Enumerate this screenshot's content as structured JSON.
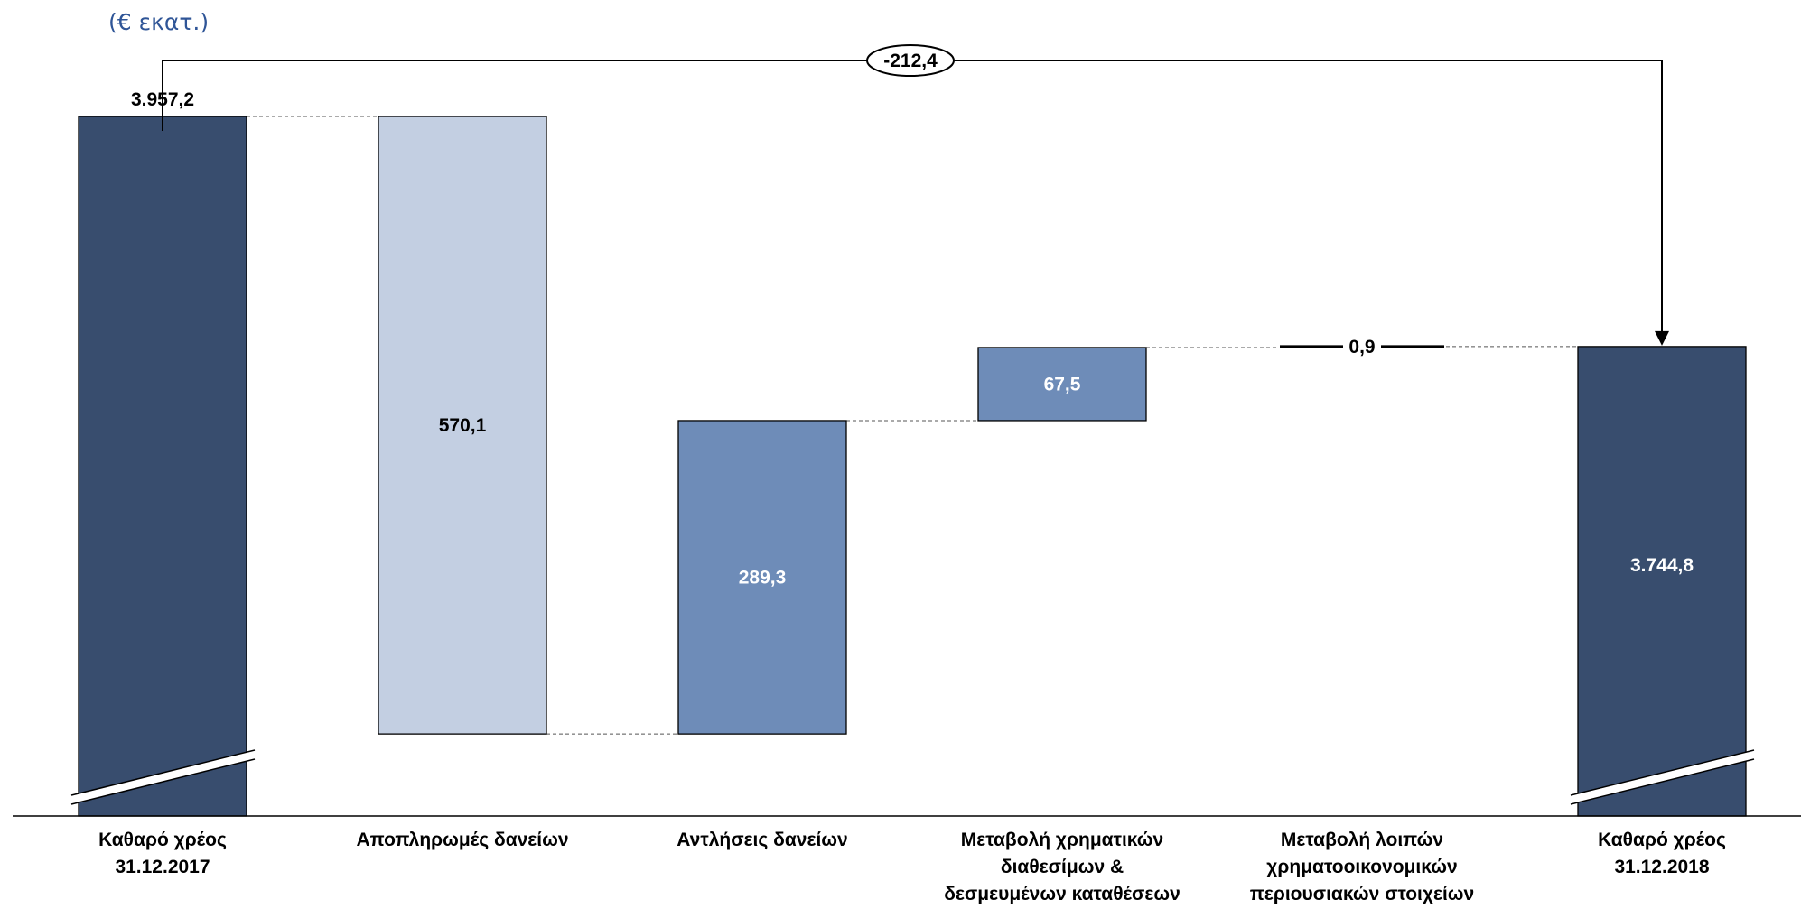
{
  "chart_data": {
    "type": "bar",
    "subtype": "waterfall",
    "unit_label": "(€ εκατ.)",
    "categories": [
      [
        "Καθαρό χρέος",
        "31.12.2017"
      ],
      [
        "Αποπληρωμές δανείων"
      ],
      [
        "Αντλήσεις δανείων"
      ],
      [
        "Μεταβολή χρηματικών",
        "διαθεσίμων &",
        "δεσμευμένων καταθέσεων"
      ],
      [
        "Μεταβολή λοιπών",
        "χρηματοοικονομικών",
        "περιουσιακών στοιχείων"
      ],
      [
        "Καθαρό χρέος",
        "31.12.2018"
      ]
    ],
    "values": [
      3957.2,
      -570.1,
      289.3,
      67.5,
      0.9,
      3744.8
    ],
    "value_labels": [
      "3.957,2",
      "570,1",
      "289,3",
      "67,5",
      "0,9",
      "3.744,8"
    ],
    "kinds": [
      "total",
      "decrease",
      "increase",
      "increase",
      "increase",
      "total"
    ],
    "axis_broken": true,
    "net_change": {
      "value": -212.4,
      "label": "-212,4"
    },
    "colors": {
      "total": "#384d6e",
      "decrease": "#c3cfe2",
      "increase": "#6e8cb8",
      "unit_text": "#2f5597",
      "label_dark": "#000000",
      "label_light": "#ffffff"
    }
  }
}
